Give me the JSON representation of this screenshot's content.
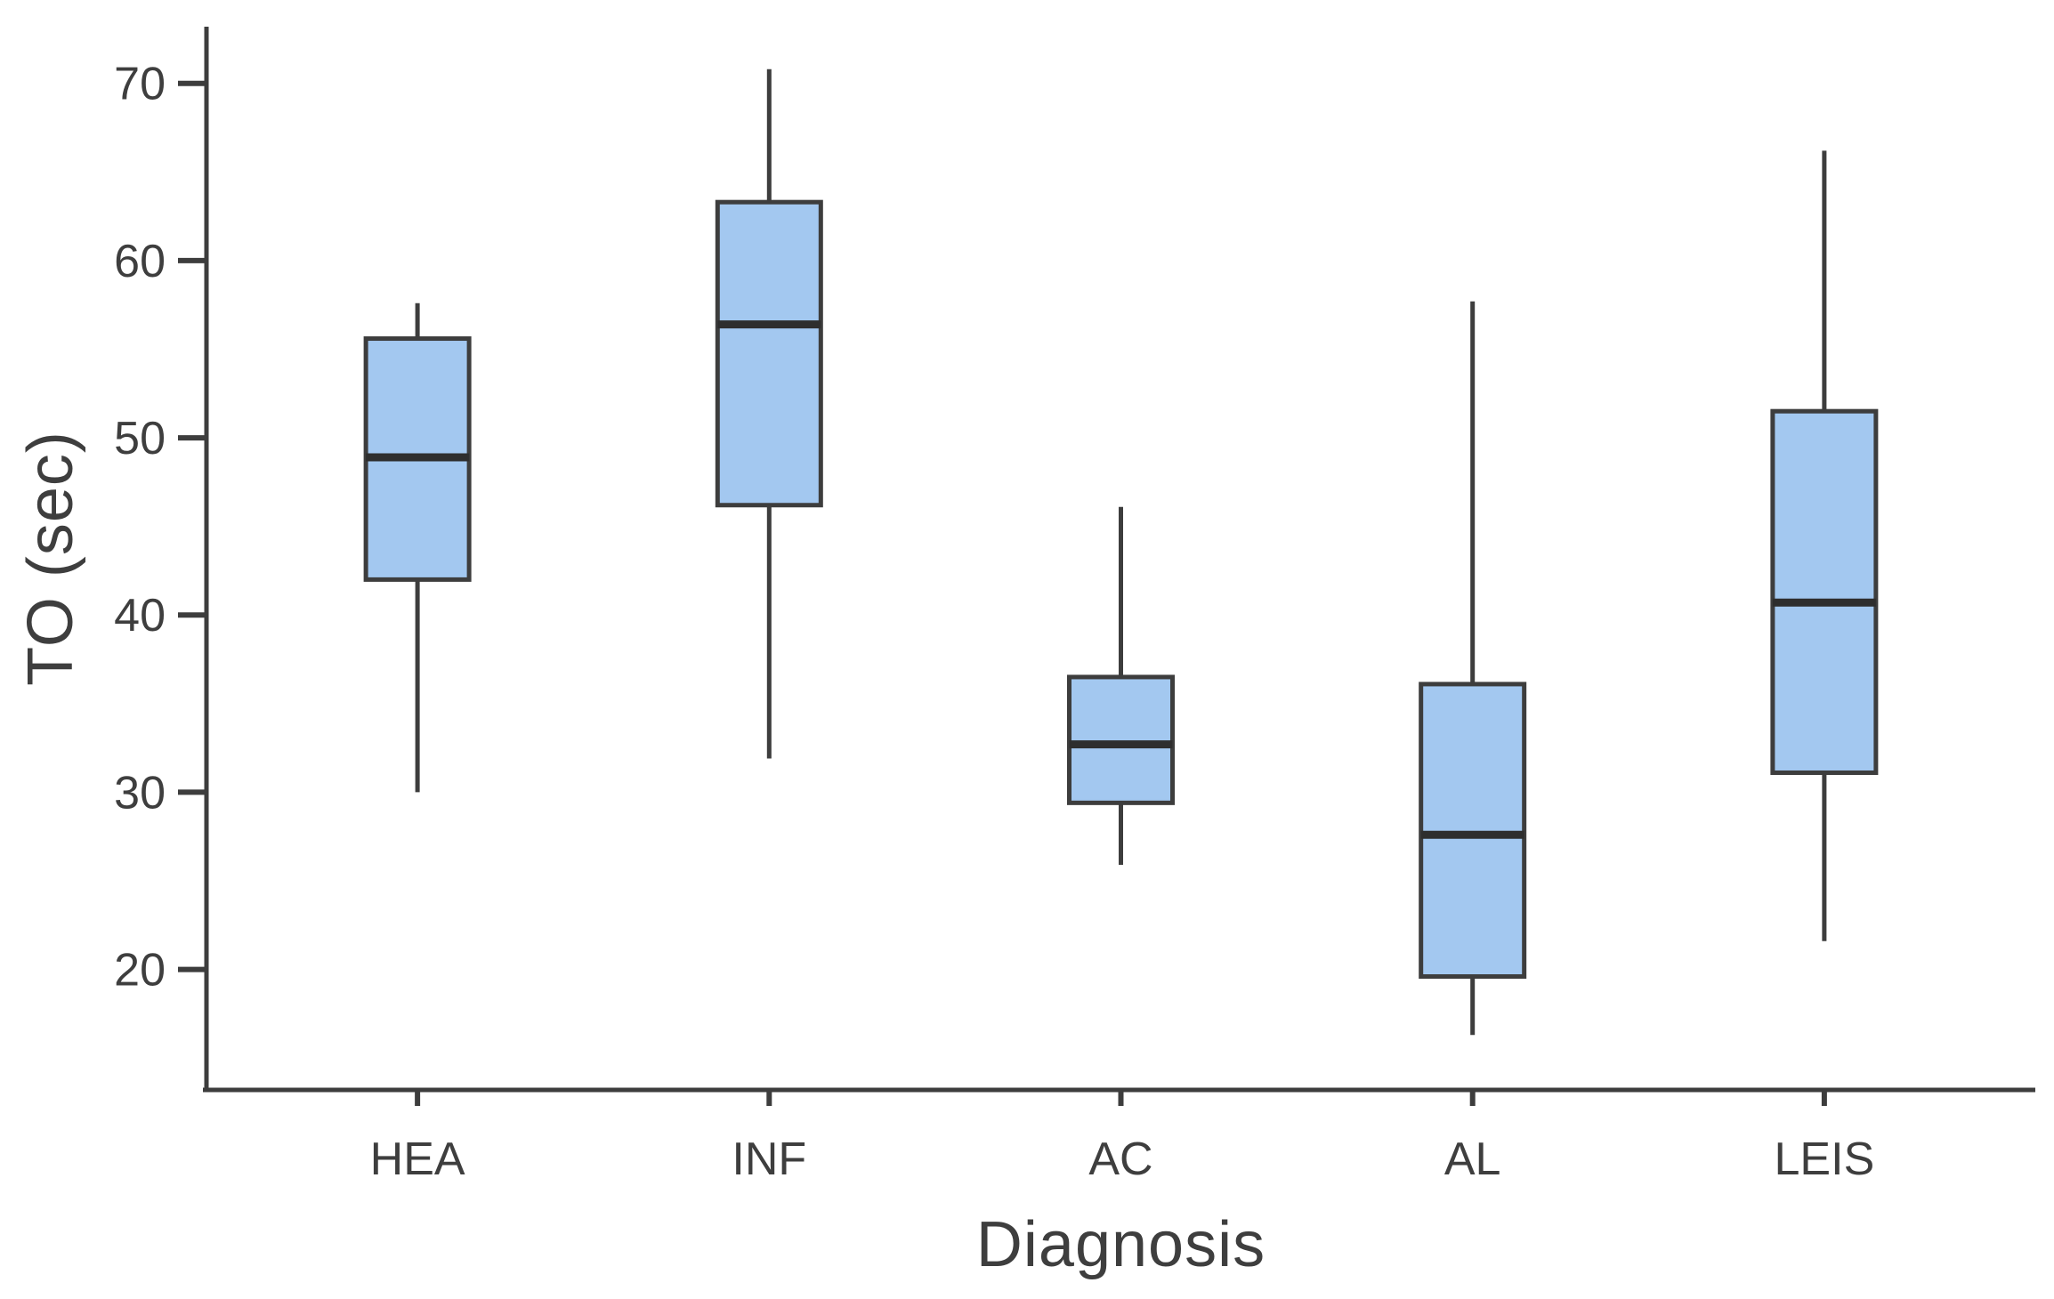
{
  "chart_data": {
    "type": "boxplot",
    "title": "",
    "xlabel": "Diagnosis",
    "ylabel": "TO (sec)",
    "categories": [
      "HEA",
      "INF",
      "AC",
      "AL",
      "LEIS"
    ],
    "yticks": [
      20,
      30,
      40,
      50,
      60,
      70
    ],
    "ytick_labels": [
      "20",
      "30",
      "40",
      "50",
      "60",
      "70"
    ],
    "ylim": [
      13.2,
      73.2
    ],
    "grid": false,
    "legend": false,
    "series": [
      {
        "category": "HEA",
        "whisker_low": 30.0,
        "q1": 42.0,
        "median": 48.9,
        "q3": 55.6,
        "whisker_high": 57.6
      },
      {
        "category": "INF",
        "whisker_low": 31.9,
        "q1": 46.2,
        "median": 56.4,
        "q3": 63.3,
        "whisker_high": 70.8
      },
      {
        "category": "AC",
        "whisker_low": 25.9,
        "q1": 29.4,
        "median": 32.7,
        "q3": 36.5,
        "whisker_high": 46.1
      },
      {
        "category": "AL",
        "whisker_low": 16.3,
        "q1": 19.6,
        "median": 27.6,
        "q3": 36.1,
        "whisker_high": 57.7
      },
      {
        "category": "LEIS",
        "whisker_low": 21.6,
        "q1": 31.1,
        "median": 40.7,
        "q3": 51.5,
        "whisker_high": 66.2
      }
    ],
    "colors": {
      "box_fill": "#A3C8F0",
      "box_border": "#3D3D3D",
      "median": "#2E2E2E",
      "axis": "#3D3D3D",
      "text": "#3E3E3E"
    }
  }
}
